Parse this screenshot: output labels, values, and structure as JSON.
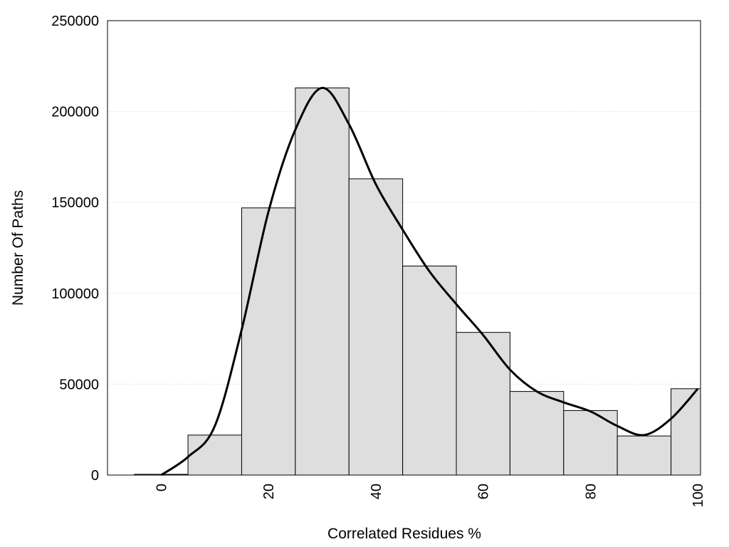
{
  "chart_data": {
    "type": "bar",
    "title": "",
    "xlabel": "Correlated Residues %",
    "ylabel": "Number Of Paths",
    "xlim": [
      -10,
      100.5
    ],
    "ylim": [
      0,
      250000
    ],
    "x_ticks": [
      0,
      20,
      40,
      60,
      80,
      100
    ],
    "y_ticks": [
      0,
      50000,
      100000,
      150000,
      200000,
      250000
    ],
    "grid": "horizontal dotted",
    "bin_width": 10,
    "bins": [
      {
        "center": 0,
        "value": 400
      },
      {
        "center": 10,
        "value": 22000
      },
      {
        "center": 20,
        "value": 147000
      },
      {
        "center": 30,
        "value": 213000
      },
      {
        "center": 40,
        "value": 163000
      },
      {
        "center": 50,
        "value": 115000
      },
      {
        "center": 60,
        "value": 78500
      },
      {
        "center": 70,
        "value": 46000
      },
      {
        "center": 80,
        "value": 35500
      },
      {
        "center": 90,
        "value": 21500
      },
      {
        "center": 100,
        "value": 47500
      }
    ],
    "density_curve": {
      "x": [
        0,
        5,
        10,
        15,
        20,
        25,
        30,
        35,
        40,
        45,
        50,
        55,
        60,
        65,
        70,
        75,
        80,
        85,
        90,
        95,
        100
      ],
      "y": [
        0,
        10000,
        27000,
        80000,
        145000,
        190000,
        213000,
        193000,
        160000,
        135000,
        112000,
        94000,
        77000,
        58000,
        46000,
        40000,
        35000,
        27000,
        22000,
        31000,
        47500
      ]
    },
    "colors": {
      "bar_fill": "#dedede",
      "bar_stroke": "#000000",
      "curve": "#000000",
      "grid": "#cccccc"
    }
  }
}
